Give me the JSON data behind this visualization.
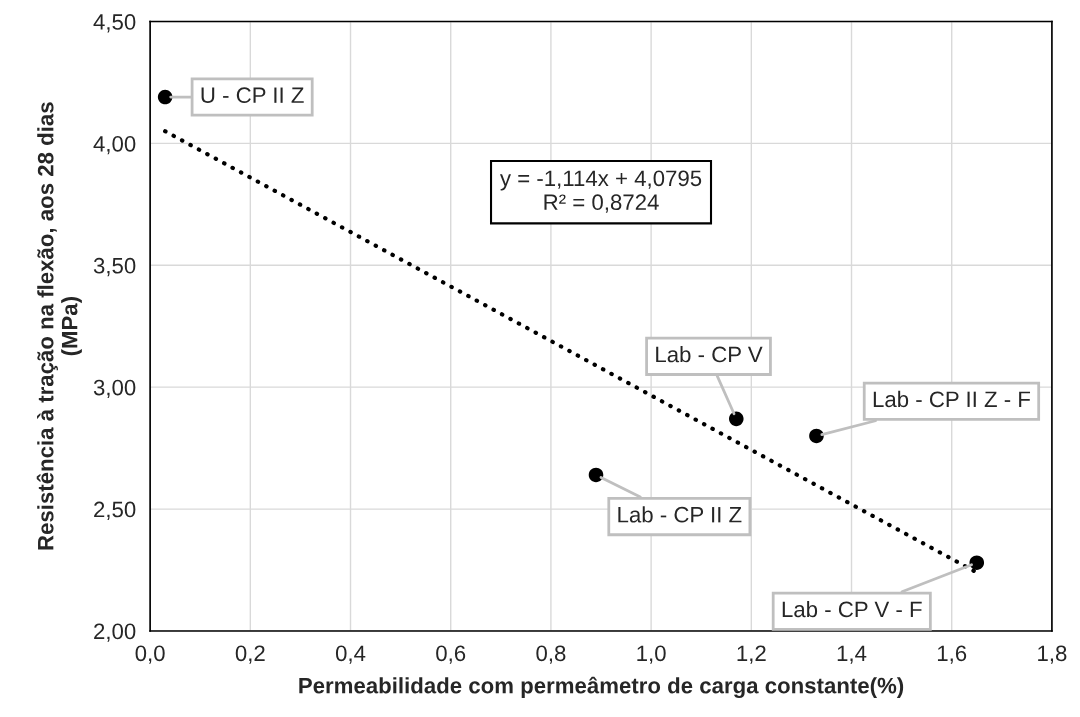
{
  "chart_data": {
    "type": "scatter",
    "xlabel": "Permeabilidade com permeâmetro de carga constante(%)",
    "ylabel": "Resistência à tração na flexão, aos 28 dias\n(MPa)",
    "series": [
      {
        "color": "#000000",
        "marker": "circle",
        "x": [
          0.03,
          0.89,
          1.17,
          1.33,
          1.65
        ],
        "values": [
          4.19,
          2.64,
          2.87,
          2.8,
          2.28
        ]
      },
      {
        "type": "line",
        "color": "#000000",
        "line_style": "dotted",
        "x": [
          0.03,
          1.65
        ],
        "values": [
          4.05,
          2.24
        ]
      }
    ],
    "annotations": [
      {
        "text": "U - CP II Z",
        "x": 0.03,
        "y": 4.19
      },
      {
        "text": "Lab - CP II Z",
        "x": 0.89,
        "y": 2.64
      },
      {
        "text": "Lab - CP V",
        "x": 1.17,
        "y": 2.87
      },
      {
        "text": "Lab - CP II Z - F",
        "x": 1.33,
        "y": 2.8
      },
      {
        "text": "Lab - CP V - F",
        "x": 1.65,
        "y": 2.28
      },
      "y = -1,114x + 4,0795\nR² = 0,8724"
    ],
    "xlim": [
      0,
      1.8
    ],
    "xticks": [
      {
        "value": 0,
        "label": "0,0"
      },
      {
        "value": 0.2,
        "label": "0,2"
      },
      {
        "value": 0.4,
        "label": "0,4"
      },
      {
        "value": 0.6,
        "label": "0,6"
      },
      {
        "value": 0.8,
        "label": "0,8"
      },
      {
        "value": 1.0,
        "label": "1,0"
      },
      {
        "value": 1.2,
        "label": "1,2"
      },
      {
        "value": 1.4,
        "label": "1,4"
      },
      {
        "value": 1.6,
        "label": "1,6"
      },
      {
        "value": 1.8,
        "label": "1,8"
      }
    ],
    "ylim": [
      2,
      4.5
    ],
    "yticks": [
      {
        "value": 2,
        "label": "2,00"
      },
      {
        "value": 2.5,
        "label": "2,50"
      },
      {
        "value": 3,
        "label": "3,00"
      },
      {
        "value": 3.5,
        "label": "3,50"
      },
      {
        "value": 4,
        "label": "4,00"
      },
      {
        "value": 4.5,
        "label": "4,50"
      }
    ],
    "grid": true,
    "legend": false
  }
}
